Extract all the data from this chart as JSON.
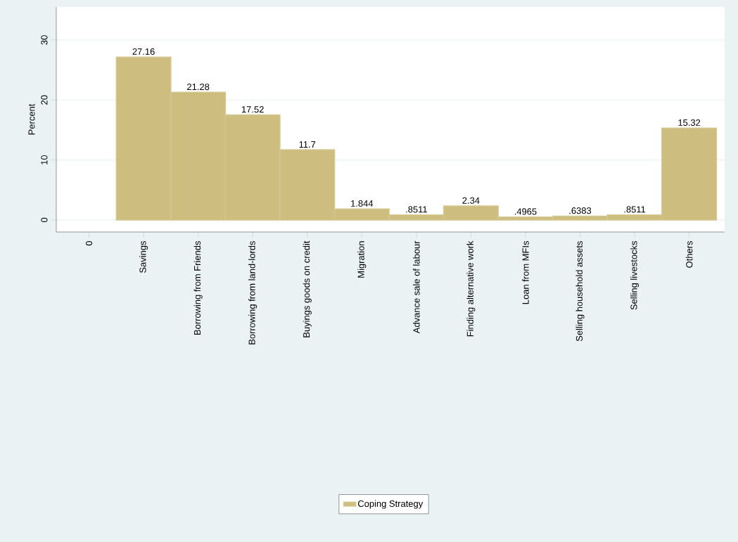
{
  "chart_data": {
    "type": "bar",
    "ylabel": "Percent",
    "categories": [
      "0",
      "Savings",
      "Borrowing from Friends",
      "Borrowing from land-lords",
      "Buyings goods on credit",
      "Migration",
      "Advance sale of labour",
      "Finding alternative work",
      "Loan from MFIs",
      "Selling household assets",
      "Selling livestocks",
      "Others"
    ],
    "series": [
      {
        "name": "Coping Strategy",
        "color": "#cdbd7e",
        "values": [
          null,
          27.16,
          21.28,
          17.52,
          11.7,
          1.844,
          0.8511,
          2.34,
          0.4965,
          0.6383,
          0.8511,
          15.32
        ],
        "value_labels": [
          null,
          "27.16",
          "21.28",
          "17.52",
          "11.7",
          "1.844",
          ".8511",
          "2.34",
          ".4965",
          ".6383",
          ".8511",
          "15.32"
        ]
      }
    ],
    "ylim": [
      -2,
      35.5
    ],
    "yticks": [
      0,
      10,
      20,
      30
    ],
    "grid": "y",
    "legend": "bottom"
  }
}
